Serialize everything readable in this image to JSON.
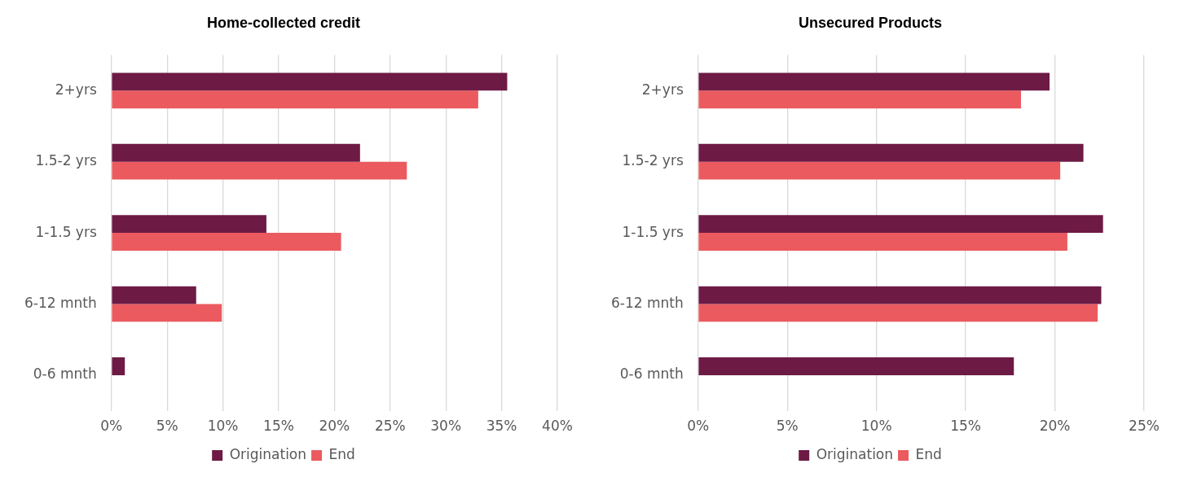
{
  "chart_data": [
    {
      "type": "bar",
      "orientation": "horizontal",
      "title": "Home-collected credit",
      "categories": [
        "2+yrs",
        "1.5-2 yrs",
        "1-1.5 yrs",
        "6-12 mnth",
        "0-6 mnth"
      ],
      "series": [
        {
          "name": "Origination",
          "color": "#6d1a45",
          "values": [
            35.5,
            22.3,
            13.9,
            7.6,
            1.2
          ]
        },
        {
          "name": "End",
          "color": "#eb5a5e",
          "values": [
            32.9,
            26.5,
            20.6,
            9.9,
            null
          ]
        }
      ],
      "xlim": [
        0,
        40
      ],
      "xticks": [
        {
          "value": 0,
          "label": "0%"
        },
        {
          "value": 5,
          "label": "5%"
        },
        {
          "value": 10,
          "label": "10%"
        },
        {
          "value": 15,
          "label": "15%"
        },
        {
          "value": 20,
          "label": "20%"
        },
        {
          "value": 25,
          "label": "25%"
        },
        {
          "value": 30,
          "label": "30%"
        },
        {
          "value": 35,
          "label": "35%"
        },
        {
          "value": 40,
          "label": "40%"
        }
      ],
      "grid": "x",
      "legend": "bottom"
    },
    {
      "type": "bar",
      "orientation": "horizontal",
      "title": "Unsecured Products",
      "categories": [
        "2+yrs",
        "1.5-2 yrs",
        "1-1.5 yrs",
        "6-12 mnth",
        "0-6 mnth"
      ],
      "series": [
        {
          "name": "Origination",
          "color": "#6d1a45",
          "values": [
            19.7,
            21.6,
            22.7,
            22.6,
            17.7
          ]
        },
        {
          "name": "End",
          "color": "#eb5a5e",
          "values": [
            18.1,
            20.3,
            20.7,
            22.4,
            null
          ]
        }
      ],
      "xlim": [
        0,
        25
      ],
      "xticks": [
        {
          "value": 0,
          "label": "0%"
        },
        {
          "value": 5,
          "label": "5%"
        },
        {
          "value": 10,
          "label": "10%"
        },
        {
          "value": 15,
          "label": "15%"
        },
        {
          "value": 20,
          "label": "20%"
        },
        {
          "value": 25,
          "label": "25%"
        }
      ],
      "grid": "x",
      "legend": "bottom"
    }
  ]
}
